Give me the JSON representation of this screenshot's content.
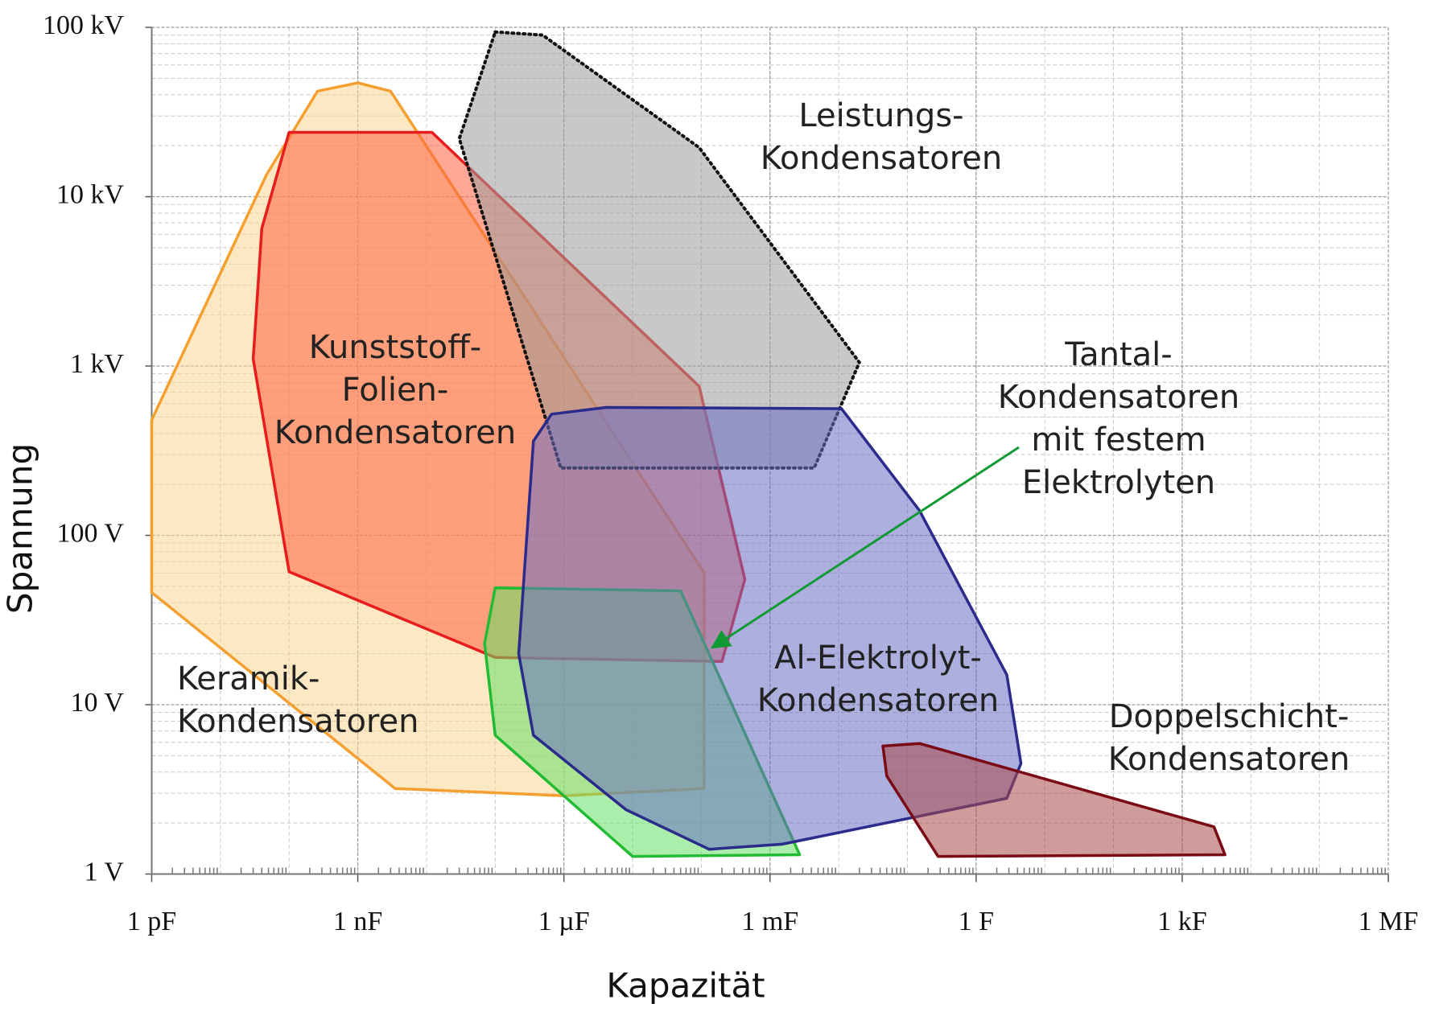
{
  "chart_data": {
    "type": "region",
    "xlabel": "Kapazität",
    "ylabel": "Spannung",
    "xscale": "log",
    "yscale": "log",
    "xlim": [
      1e-12,
      1000000.0
    ],
    "ylim": [
      1,
      100000
    ],
    "xticks": [
      {
        "value": 1e-12,
        "label": "1 pF"
      },
      {
        "value": 1e-09,
        "label": "1 nF"
      },
      {
        "value": 1e-06,
        "label": "1 µF"
      },
      {
        "value": 0.001,
        "label": "1 mF"
      },
      {
        "value": 1,
        "label": "1 F"
      },
      {
        "value": 1000,
        "label": "1 kF"
      },
      {
        "value": 1000000,
        "label": "1 MF"
      }
    ],
    "yticks": [
      {
        "value": 1,
        "label": "1 V"
      },
      {
        "value": 10,
        "label": "10 V"
      },
      {
        "value": 100,
        "label": "100 V"
      },
      {
        "value": 1000,
        "label": "1 kV"
      },
      {
        "value": 10000,
        "label": "10 kV"
      },
      {
        "value": 100000,
        "label": "100 kV"
      }
    ],
    "grid": true,
    "minor_grid": true,
    "series": [
      {
        "name": [
          "Keramik-",
          "Kondensatoren"
        ],
        "color": "#f4a030",
        "fill": "#fcd594",
        "line_style": "solid",
        "x": [
          1e-12,
          1e-12,
          3.5e-09,
          1e-06,
          0.00011,
          0.00011,
          3e-09,
          1e-09,
          2.6e-10,
          4.7e-11
        ],
        "values": [
          480,
          46,
          3.2,
          2.9,
          3.2,
          60,
          42000,
          47000,
          42000,
          13500
        ]
      },
      {
        "name": [
          "Kunststoff-",
          "Folien-",
          "Kondensatoren"
        ],
        "color": "#e81c1c",
        "fill": "#ff6040",
        "line_style": "solid",
        "x": [
          1e-10,
          1.2e-08,
          9.3e-05,
          0.00043,
          0.0002,
          1e-07,
          1e-10,
          3e-11,
          4e-11
        ],
        "values": [
          24000,
          24000,
          760,
          55,
          18,
          19,
          61,
          1100,
          6500
        ]
      },
      {
        "name": [
          "Leistungs-",
          "Kondensatoren"
        ],
        "color": "#111111",
        "fill": "#9a9a9a",
        "line_style": "dotted",
        "x": [
          1e-07,
          4.9e-07,
          9.3e-05,
          0.02,
          0.0044,
          9e-07,
          3e-08
        ],
        "values": [
          94000,
          90000,
          19500,
          1050,
          250,
          250,
          22000
        ]
      },
      {
        "name": [
          "Tantal-",
          "Kondensatoren",
          "mit festem",
          "Elektrolyten"
        ],
        "color": "#22bb33",
        "fill": "#66e066",
        "line_style": "solid",
        "x": [
          1e-07,
          5e-05,
          0.0027,
          1e-05,
          1e-07,
          7e-08
        ],
        "values": [
          49,
          47,
          1.3,
          1.27,
          6.6,
          23
        ]
      },
      {
        "name": [
          "Al-Elektrolyt-",
          "Kondensatoren"
        ],
        "color": "#2b2b8c",
        "fill": "#6a70c4",
        "line_style": "solid",
        "x": [
          6.6e-07,
          4.2e-06,
          0.011,
          0.15,
          2.8,
          4.5,
          2.8,
          0.0015,
          0.00013,
          8e-06,
          3.6e-07,
          2.2e-07,
          3.6e-07
        ],
        "values": [
          520,
          570,
          560,
          140,
          15,
          4.5,
          2.8,
          1.5,
          1.4,
          2.4,
          6.6,
          20,
          360
        ]
      },
      {
        "name": [
          "Doppelschicht-",
          "Kondensatoren"
        ],
        "color": "#7a0a14",
        "fill": "#a84848",
        "line_style": "solid",
        "x": [
          0.044,
          0.15,
          2900,
          4200,
          0.28,
          0.05
        ],
        "values": [
          5.7,
          5.9,
          1.9,
          1.3,
          1.27,
          3.8
        ]
      }
    ]
  }
}
